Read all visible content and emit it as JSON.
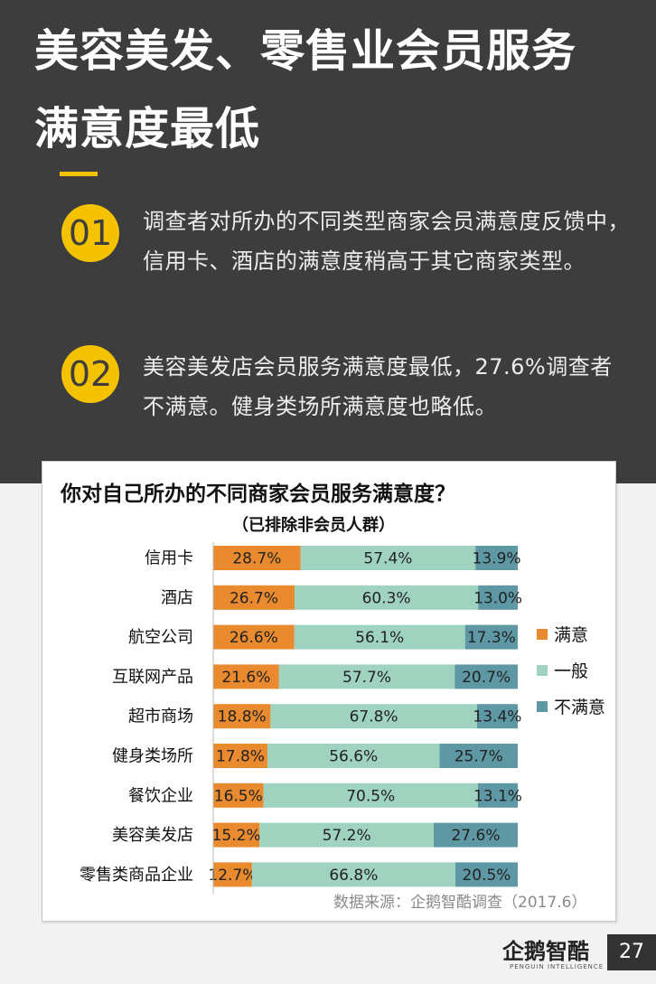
{
  "header": {
    "title_line1": "美容美发、零售业会员服务",
    "title_line2": "满意度最低"
  },
  "points": [
    {
      "number": "01",
      "text": "调查者对所办的不同类型商家会员满意度反馈中，信用卡、酒店的满意度稍高于其它商家类型。"
    },
    {
      "number": "02",
      "text": "美容美发店会员服务满意度最低，27.6%调查者不满意。健身类场所满意度也略低。"
    }
  ],
  "chart_data": {
    "type": "bar",
    "orientation": "horizontal",
    "stacked": true,
    "title": "你对自己所办的不同商家会员服务满意度？",
    "subtitle": "（已排除非会员人群）",
    "categories": [
      "信用卡",
      "酒店",
      "航空公司",
      "互联网产品",
      "超市商场",
      "健身类场所",
      "餐饮企业",
      "美容美发店",
      "零售类商品企业"
    ],
    "series": [
      {
        "name": "满意",
        "color": "#e98a2e",
        "values": [
          28.7,
          26.7,
          26.6,
          21.6,
          18.8,
          17.8,
          16.5,
          15.2,
          12.7
        ]
      },
      {
        "name": "一般",
        "color": "#9fd3bf",
        "values": [
          57.4,
          60.3,
          56.1,
          57.7,
          67.8,
          56.6,
          70.5,
          57.2,
          66.8
        ]
      },
      {
        "name": "不满意",
        "color": "#5f98a5",
        "values": [
          13.9,
          13.0,
          17.3,
          20.7,
          13.4,
          25.7,
          13.1,
          27.6,
          20.5
        ]
      }
    ],
    "legend_position": "right",
    "xlim": [
      0,
      100
    ]
  },
  "source": "数据来源：企鹅智酷调查（2017.6）",
  "footer": {
    "logo_text": "企鹅智酷",
    "logo_sub": "PENGUIN INTELLIGENCE",
    "page_number": "27"
  }
}
